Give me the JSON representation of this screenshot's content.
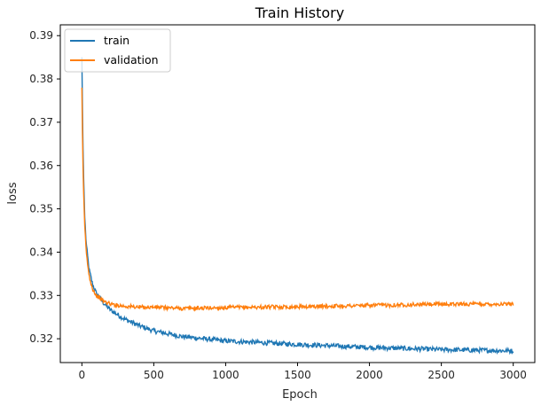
{
  "chart_data": {
    "type": "line",
    "title": "Train History",
    "xlabel": "Epoch",
    "ylabel": "loss",
    "xlim": [
      -150,
      3150
    ],
    "ylim": [
      0.3145,
      0.3925
    ],
    "xticks": [
      0,
      500,
      1000,
      1500,
      2000,
      2500,
      3000
    ],
    "yticks": [
      0.32,
      0.33,
      0.34,
      0.35,
      0.36,
      0.37,
      0.38,
      0.39
    ],
    "xtick_labels": [
      "0",
      "500",
      "1000",
      "1500",
      "2000",
      "2500",
      "3000"
    ],
    "ytick_labels": [
      "0.32",
      "0.33",
      "0.34",
      "0.35",
      "0.36",
      "0.37",
      "0.38",
      "0.39"
    ],
    "grid": false,
    "legend": {
      "position": "upper-left",
      "entries": [
        "train",
        "validation"
      ]
    },
    "series": [
      {
        "name": "train",
        "color": "#1f77b4",
        "x": [
          0,
          5,
          10,
          20,
          30,
          50,
          75,
          100,
          150,
          200,
          300,
          400,
          500,
          700,
          1000,
          1500,
          2000,
          2500,
          3000
        ],
        "y": [
          0.385,
          0.37,
          0.36,
          0.348,
          0.342,
          0.336,
          0.3325,
          0.3305,
          0.3283,
          0.3266,
          0.3245,
          0.323,
          0.3218,
          0.3205,
          0.3195,
          0.3187,
          0.318,
          0.3175,
          0.3172
        ]
      },
      {
        "name": "validation",
        "color": "#ff7f0e",
        "x": [
          0,
          5,
          10,
          20,
          30,
          50,
          75,
          100,
          150,
          200,
          300,
          400,
          500,
          700,
          1000,
          1500,
          2000,
          2500,
          3000
        ],
        "y": [
          0.378,
          0.365,
          0.356,
          0.346,
          0.34,
          0.3345,
          0.3315,
          0.33,
          0.3287,
          0.328,
          0.3275,
          0.3273,
          0.3273,
          0.327,
          0.3272,
          0.3274,
          0.3277,
          0.328,
          0.328
        ]
      }
    ]
  }
}
